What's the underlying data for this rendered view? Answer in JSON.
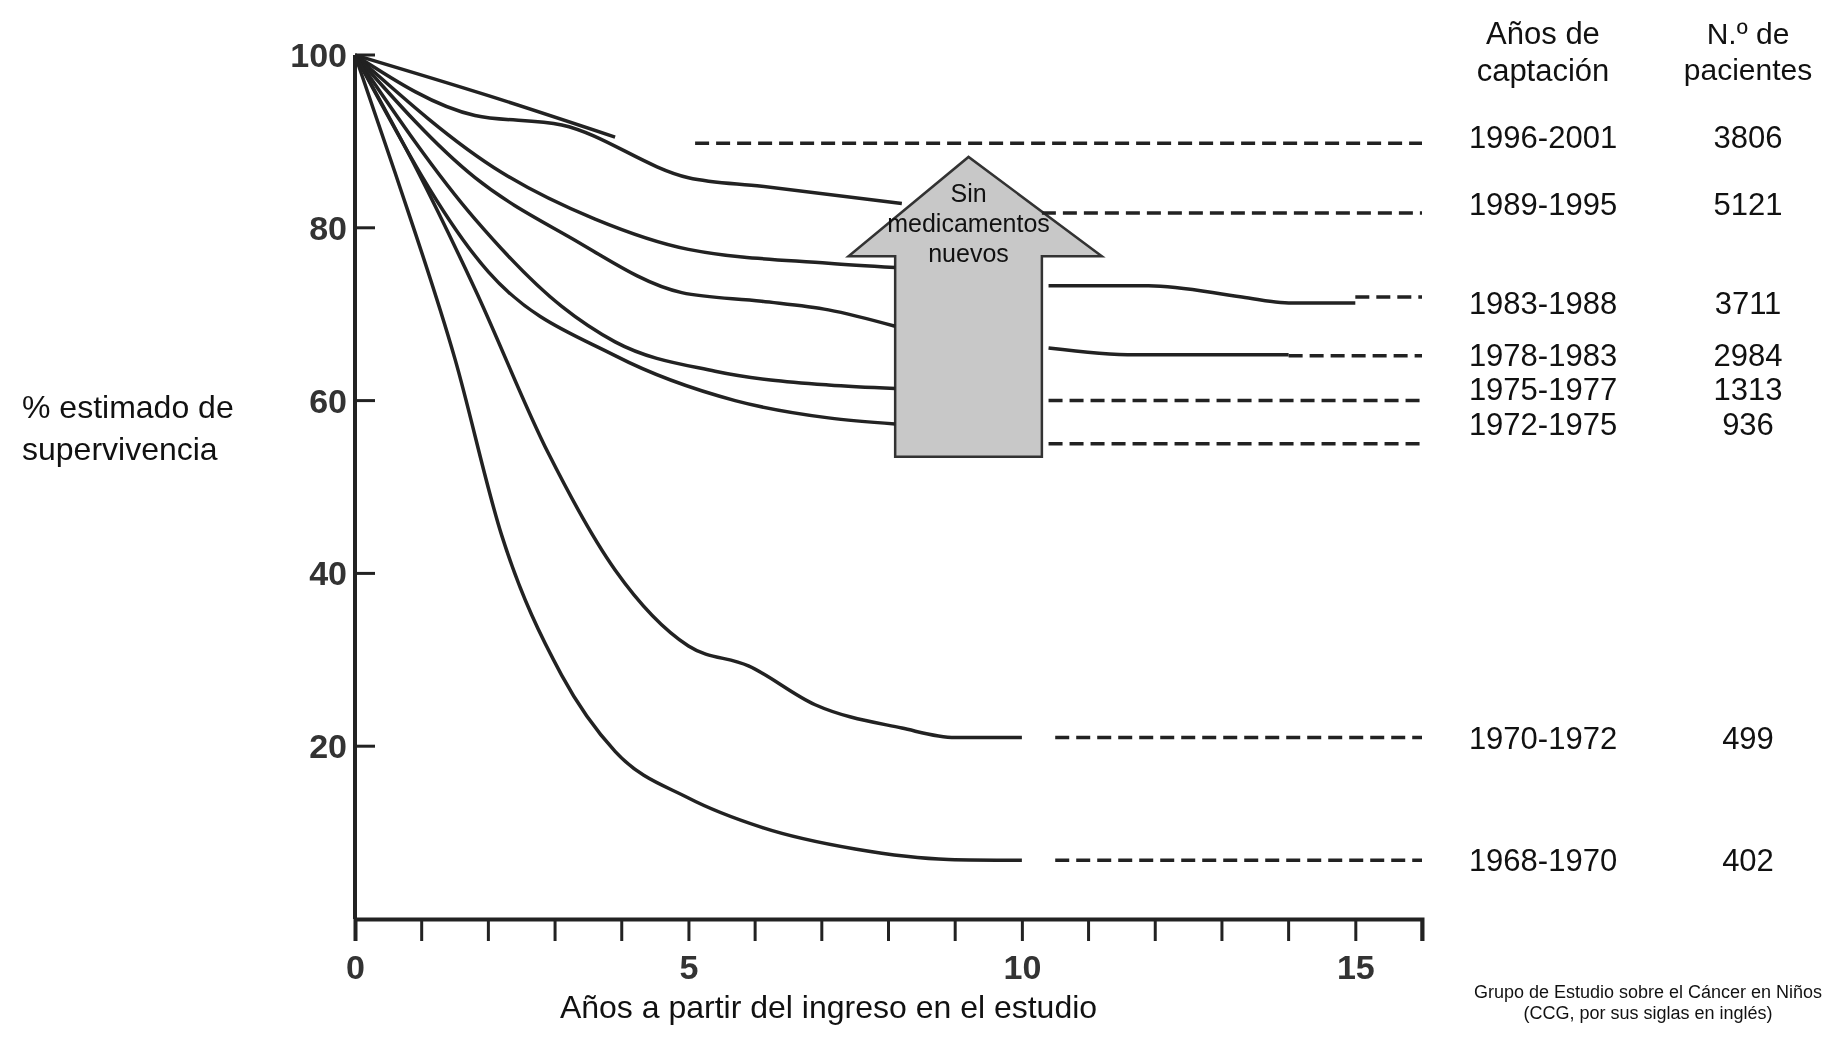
{
  "chart_data": {
    "type": "line",
    "xlabel": "Años a partir del ingreso en el estudio",
    "ylabel": "% estimado de supervivencia",
    "legend_title": "Años de\ncaptación",
    "xlim": [
      0,
      16
    ],
    "ylim": [
      0,
      100
    ],
    "xticks": [
      0,
      5,
      10,
      15
    ],
    "yticks": [
      20,
      40,
      60,
      80,
      100
    ],
    "grid": false,
    "marker": "none",
    "line_style": "solid",
    "series": [
      {
        "name": "1996-2001",
        "color": "#222222",
        "x": [
          0,
          2,
          3.9
        ],
        "values": [
          100,
          95.3,
          90.5
        ]
      },
      {
        "color": "#222222",
        "line_style": "dashed",
        "x": [
          5.1,
          16
        ],
        "values": [
          89.8,
          89.8
        ]
      },
      {
        "name": "1989-1995",
        "color": "#222222",
        "x": [
          0,
          1.8,
          3.1,
          5,
          6.1,
          8.2
        ],
        "values": [
          100,
          93,
          91.9,
          85.8,
          84.8,
          82.8
        ]
      },
      {
        "color": "#222222",
        "line_style": "dashed",
        "x": [
          10.3,
          16
        ],
        "values": [
          81.7,
          81.7
        ]
      },
      {
        "name": "1983-1988",
        "color": "#222222",
        "x": [
          0,
          2.2,
          3.6,
          5,
          7.1,
          8.1,
          9.2,
          10.4,
          11.9,
          13.3,
          14,
          15
        ],
        "values": [
          100,
          86.4,
          81,
          77.5,
          75.9,
          75.4,
          null,
          73.3,
          73.3,
          72,
          71.3,
          71.3
        ]
      },
      {
        "color": "#222222",
        "line_style": "dashed",
        "x": [
          15,
          16
        ],
        "values": [
          72,
          72
        ]
      },
      {
        "name": "1978-1983",
        "color": "#222222",
        "x": [
          0,
          1.8,
          3.2,
          4.9,
          6.1,
          7.1,
          8.1,
          9.2,
          10.4,
          11.7,
          14
        ],
        "values": [
          100,
          85.8,
          79,
          72.5,
          71.5,
          70.5,
          68.6,
          null,
          66.1,
          65.3,
          65.3
        ]
      },
      {
        "color": "#222222",
        "line_style": "dashed",
        "x": [
          14,
          16
        ],
        "values": [
          65.2,
          65.2
        ]
      },
      {
        "name": "1975-1977",
        "color": "#222222",
        "x": [
          0,
          1.8,
          3.1,
          3.9,
          5.4,
          7.1,
          8.1
        ],
        "values": [
          100,
          81,
          70.9,
          66.8,
          63.4,
          61.8,
          61.4
        ]
      },
      {
        "color": "#222222",
        "line_style": "dashed",
        "x": [
          10.4,
          16
        ],
        "values": [
          60,
          60
        ]
      },
      {
        "name": "1972-1975",
        "color": "#222222",
        "x": [
          0,
          2,
          3.9,
          5.7,
          7.1,
          8.1
        ],
        "values": [
          100,
          74.9,
          65.2,
          60,
          58,
          57.3
        ]
      },
      {
        "color": "#222222",
        "line_style": "dashed",
        "x": [
          10.4,
          16
        ],
        "values": [
          55,
          55
        ]
      },
      {
        "name": "1970-1972",
        "color": "#222222",
        "x": [
          0,
          0.95,
          1.8,
          2.9,
          3.9,
          5,
          5.9,
          6.9,
          8.2,
          9,
          10
        ],
        "values": [
          100,
          86.4,
          72.9,
          53.9,
          40.4,
          31.6,
          29.3,
          24.8,
          22.1,
          21,
          21
        ]
      },
      {
        "color": "#222222",
        "line_style": "dashed",
        "x": [
          10.5,
          16
        ],
        "values": [
          21,
          21
        ]
      },
      {
        "name": "1968-1970",
        "color": "#222222",
        "x": [
          0,
          0.6,
          1.5,
          2.2,
          3.1,
          3.9,
          5,
          6.1,
          7.5,
          8.9,
          10
        ],
        "values": [
          100,
          86.4,
          64.8,
          44.4,
          28.2,
          19.4,
          14,
          10.6,
          8.1,
          6.9,
          6.8
        ]
      },
      {
        "color": "#222222",
        "line_style": "dashed",
        "x": [
          10.5,
          16
        ],
        "values": [
          6.8,
          6.8
        ]
      }
    ],
    "annotations": [
      "N.º de\npacientes",
      "Sin\nmedicamentos\nnuevos",
      "Grupo de Estudio sobre el Cáncer en Niños\n(CCG, por sus siglas en inglés)",
      "3806",
      "5121",
      "3711",
      "2984",
      "1313",
      "936",
      "499",
      "402"
    ]
  }
}
